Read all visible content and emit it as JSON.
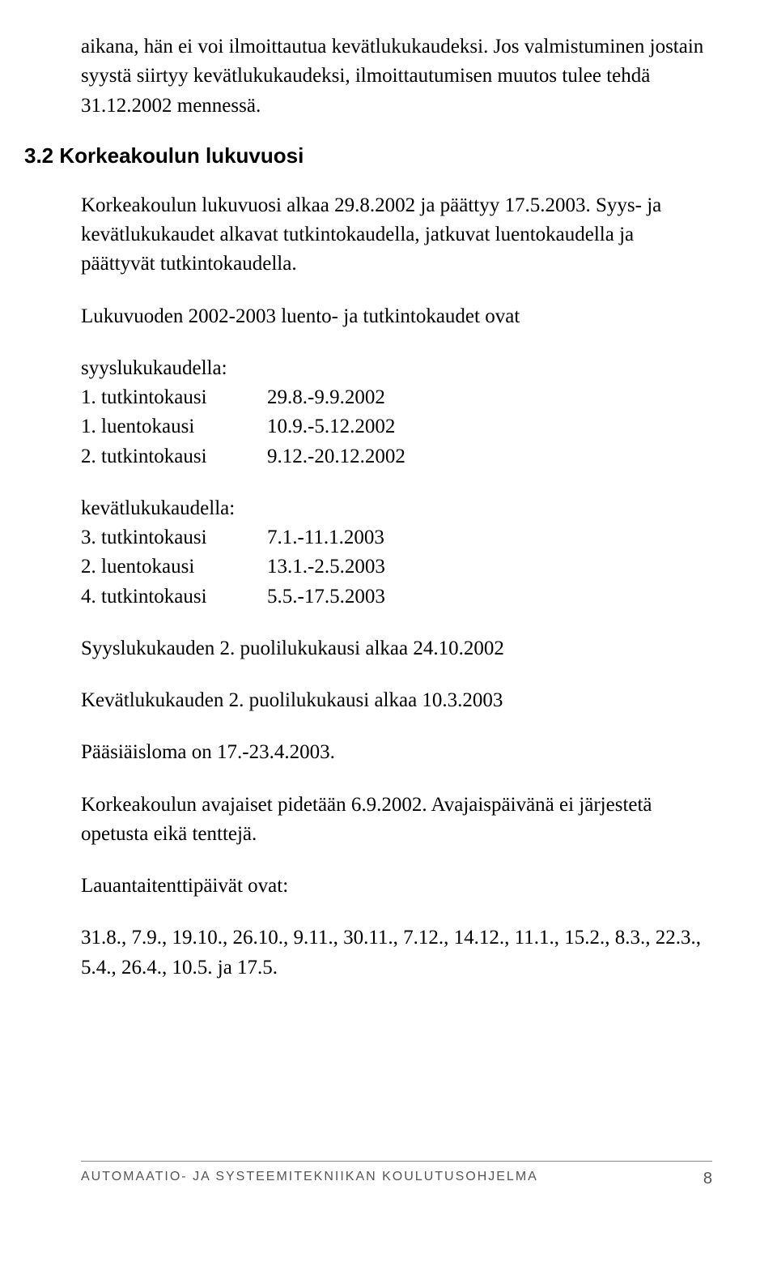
{
  "intro_para": "aikana, hän ei voi ilmoittautua kevätlukukaudeksi. Jos valmistuminen jostain syystä siirtyy kevätlukukaudeksi, ilmoittautumisen muutos tulee tehdä 31.12.2002 mennessä.",
  "heading": "3.2 Korkeakoulun lukuvuosi",
  "para1": "Korkeakoulun lukuvuosi alkaa 29.8.2002 ja päättyy 17.5.2003. Syys- ja kevätlukukaudet alkavat tutkintokaudella, jatkuvat luentokaudella ja päättyvät tutkintokaudella.",
  "para2": "Lukuvuoden 2002-2003 luento- ja tutkintokaudet ovat",
  "syys_header": "syyslukukaudella:",
  "syys_rows": [
    {
      "label": "1. tutkintokausi",
      "date": "29.8.-9.9.2002"
    },
    {
      "label": "1. luentokausi",
      "date": "10.9.-5.12.2002"
    },
    {
      "label": "2. tutkintokausi",
      "date": "9.12.-20.12.2002"
    }
  ],
  "kevat_header": "kevätlukukaudella:",
  "kevat_rows": [
    {
      "label": "3. tutkintokausi",
      "date": "7.1.-11.1.2003"
    },
    {
      "label": "2. luentokausi",
      "date": "13.1.-2.5.2003"
    },
    {
      "label": "4. tutkintokausi",
      "date": "5.5.-17.5.2003"
    }
  ],
  "para3": "Syyslukukauden 2. puolilukukausi alkaa 24.10.2002",
  "para4": "Kevätlukukauden 2. puolilukukausi alkaa 10.3.2003",
  "para5": "Pääsiäisloma on 17.-23.4.2003.",
  "para6": "Korkeakoulun avajaiset pidetään 6.9.2002. Avajaispäivänä ei järjestetä opetusta eikä tenttejä.",
  "para7": "Lauantaitenttipäivät ovat:",
  "para8": "31.8., 7.9., 19.10., 26.10., 9.11., 30.11., 7.12., 14.12., 11.1., 15.2., 8.3., 22.3., 5.4., 26.4., 10.5. ja 17.5.",
  "footer_text": "AUTOMAATIO- JA SYSTEEMITEKNIIKAN KOULUTUSOHJELMA",
  "footer_page": "8",
  "colors": {
    "text": "#000000",
    "background": "#ffffff",
    "footer_text": "#555555",
    "footer_border": "#888888"
  },
  "typography": {
    "body_fontsize": 25,
    "heading_fontsize": 26,
    "footer_fontsize": 16,
    "body_font": "Georgia serif",
    "heading_font": "Arial sans-serif"
  }
}
